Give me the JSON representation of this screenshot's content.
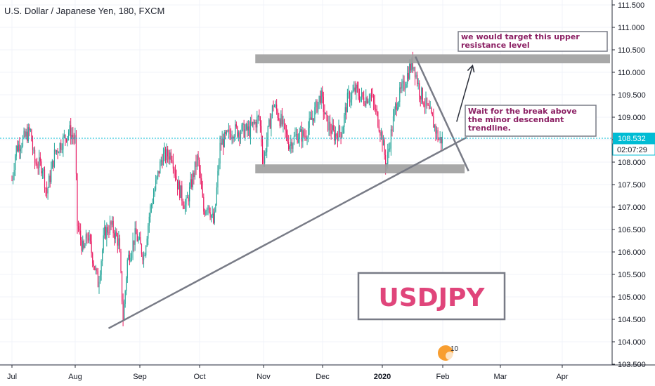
{
  "header": {
    "title": "U.S. Dollar / Japanese Yen, 180, FXCM"
  },
  "price": {
    "last": "108.532",
    "countdown": "02:07:29",
    "color": "#00bcd4"
  },
  "colors": {
    "up": "#26a69a",
    "down": "#e91e63",
    "drawing": "#787b86",
    "zone": "#9e9e9e",
    "note_text": "#8b1f63",
    "symbol_text": "#e0457b"
  },
  "annotations": {
    "target_note": [
      "we would target this upper",
      "resistance level"
    ],
    "break_note": [
      "Wait for the break above",
      "the minor descendant",
      "trendline."
    ],
    "symbol_box": "USDJPY"
  },
  "logo": {
    "label": "10",
    "icon": "tradingview-logo-icon"
  },
  "chart_data": {
    "type": "candlestick",
    "title": "U.S. Dollar / Japanese Yen, 180, FXCM",
    "ylim": [
      103.5,
      111.5
    ],
    "y_ticks": [
      "111.500",
      "111.000",
      "110.500",
      "110.000",
      "109.500",
      "109.000",
      "108.500",
      "108.000",
      "107.500",
      "107.000",
      "106.500",
      "106.000",
      "105.500",
      "105.000",
      "104.500",
      "104.000",
      "103.500"
    ],
    "x_ticks": [
      "Jul",
      "Aug",
      "Sep",
      "Oct",
      "Nov",
      "Dec",
      "2020",
      "Feb",
      "Mar",
      "Apr"
    ],
    "price_path": [
      {
        "date": "Jul 1",
        "price": 107.6
      },
      {
        "date": "Jul 3",
        "price": 108.3
      },
      {
        "date": "Jul 10",
        "price": 108.7
      },
      {
        "date": "Jul 12",
        "price": 108.0
      },
      {
        "date": "Jul 16",
        "price": 107.9
      },
      {
        "date": "Jul 18",
        "price": 107.3
      },
      {
        "date": "Jul 22",
        "price": 108.2
      },
      {
        "date": "Jul 29",
        "price": 108.7
      },
      {
        "date": "Aug 1",
        "price": 108.5
      },
      {
        "date": "Aug 2",
        "price": 106.6
      },
      {
        "date": "Aug 5",
        "price": 106.0
      },
      {
        "date": "Aug 7",
        "price": 106.4
      },
      {
        "date": "Aug 12",
        "price": 105.3
      },
      {
        "date": "Aug 15",
        "price": 106.4
      },
      {
        "date": "Aug 18",
        "price": 106.6
      },
      {
        "date": "Aug 22",
        "price": 106.2
      },
      {
        "date": "Aug 24",
        "price": 104.5
      },
      {
        "date": "Aug 26",
        "price": 105.8
      },
      {
        "date": "Aug 30",
        "price": 106.4
      },
      {
        "date": "Sep 3",
        "price": 105.9
      },
      {
        "date": "Sep 6",
        "price": 106.9
      },
      {
        "date": "Sep 12",
        "price": 108.1
      },
      {
        "date": "Sep 17",
        "price": 108.2
      },
      {
        "date": "Sep 20",
        "price": 107.5
      },
      {
        "date": "Sep 24",
        "price": 107.0
      },
      {
        "date": "Sep 30",
        "price": 108.1
      },
      {
        "date": "Oct 3",
        "price": 106.9
      },
      {
        "date": "Oct 5",
        "price": 107.1
      },
      {
        "date": "Oct 8",
        "price": 106.6
      },
      {
        "date": "Oct 11",
        "price": 108.4
      },
      {
        "date": "Oct 17",
        "price": 108.7
      },
      {
        "date": "Oct 25",
        "price": 108.7
      },
      {
        "date": "Oct 30",
        "price": 109.0
      },
      {
        "date": "Nov 1",
        "price": 108.0
      },
      {
        "date": "Nov 3",
        "price": 108.6
      },
      {
        "date": "Nov 6",
        "price": 109.3
      },
      {
        "date": "Nov 10",
        "price": 108.9
      },
      {
        "date": "Nov 14",
        "price": 108.4
      },
      {
        "date": "Nov 18",
        "price": 108.6
      },
      {
        "date": "Nov 22",
        "price": 108.6
      },
      {
        "date": "Nov 26",
        "price": 109.0
      },
      {
        "date": "Nov 30",
        "price": 109.5
      },
      {
        "date": "Dec 3",
        "price": 108.9
      },
      {
        "date": "Dec 7",
        "price": 108.6
      },
      {
        "date": "Dec 11",
        "price": 108.7
      },
      {
        "date": "Dec 14",
        "price": 109.4
      },
      {
        "date": "Dec 18",
        "price": 109.6
      },
      {
        "date": "Dec 22",
        "price": 109.4
      },
      {
        "date": "Dec 26",
        "price": 109.5
      },
      {
        "date": "Dec 30",
        "price": 108.9
      },
      {
        "date": "Jan 1",
        "price": 108.5
      },
      {
        "date": "Jan 3",
        "price": 107.9
      },
      {
        "date": "Jan 5",
        "price": 108.5
      },
      {
        "date": "Jan 8",
        "price": 109.3
      },
      {
        "date": "Jan 12",
        "price": 109.7
      },
      {
        "date": "Jan 15",
        "price": 110.1
      },
      {
        "date": "Jan 17",
        "price": 110.2
      },
      {
        "date": "Jan 20",
        "price": 109.6
      },
      {
        "date": "Jan 24",
        "price": 109.2
      },
      {
        "date": "Jan 27",
        "price": 108.9
      },
      {
        "date": "Jan 30",
        "price": 108.5
      },
      {
        "date": "Feb 1",
        "price": 108.5
      }
    ],
    "drawings": {
      "upper_zone": {
        "from": "Oct 28",
        "to": "Apr 30",
        "low": 110.2,
        "high": 110.4
      },
      "lower_zone": {
        "from": "Oct 28",
        "to": "Feb 12",
        "low": 107.75,
        "high": 107.95
      },
      "rising_trendline": {
        "from": {
          "date": "Aug 17",
          "price": 104.3
        },
        "to": {
          "date": "Feb 13",
          "price": 108.55
        }
      },
      "descending_trendline": {
        "from": {
          "date": "Jan 18",
          "price": 110.35
        },
        "to": {
          "date": "Feb 14",
          "price": 107.8
        }
      },
      "arrow": {
        "from": {
          "date": "Feb 8",
          "price": 108.9
        },
        "to": {
          "date": "Feb 16",
          "price": 110.15
        }
      }
    }
  }
}
